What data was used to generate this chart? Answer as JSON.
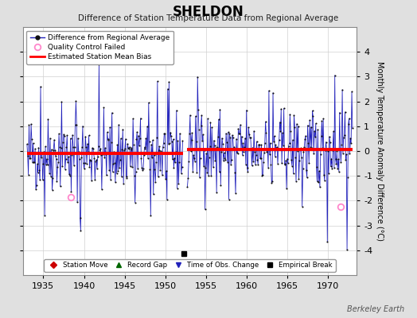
{
  "title": "SHELDON",
  "subtitle": "Difference of Station Temperature Data from Regional Average",
  "ylabel": "Monthly Temperature Anomaly Difference (°C)",
  "xlabel_years": [
    1935,
    1940,
    1945,
    1950,
    1955,
    1960,
    1965,
    1970
  ],
  "xlim": [
    1932.5,
    1973.5
  ],
  "ylim": [
    -5,
    5
  ],
  "yticks": [
    -4,
    -3,
    -2,
    -1,
    0,
    1,
    2,
    3,
    4
  ],
  "background_color": "#e0e0e0",
  "plot_background_color": "#ffffff",
  "line_color": "#2222bb",
  "dot_color": "#111111",
  "bias_color": "#ff0000",
  "qc_color": "#ff88cc",
  "watermark": "Berkeley Earth",
  "empirical_break_x": 1952.3,
  "empirical_break_y": -4.15,
  "segment1_bias": -0.1,
  "segment2_bias": 0.08,
  "qc_fail_1": [
    1938.4,
    -1.85
  ],
  "qc_fail_2": [
    1971.5,
    -2.25
  ],
  "gap_start": 1952.2,
  "gap_end": 1952.7,
  "start_year": 1933.0,
  "end_year": 1973.0,
  "seed": 42
}
